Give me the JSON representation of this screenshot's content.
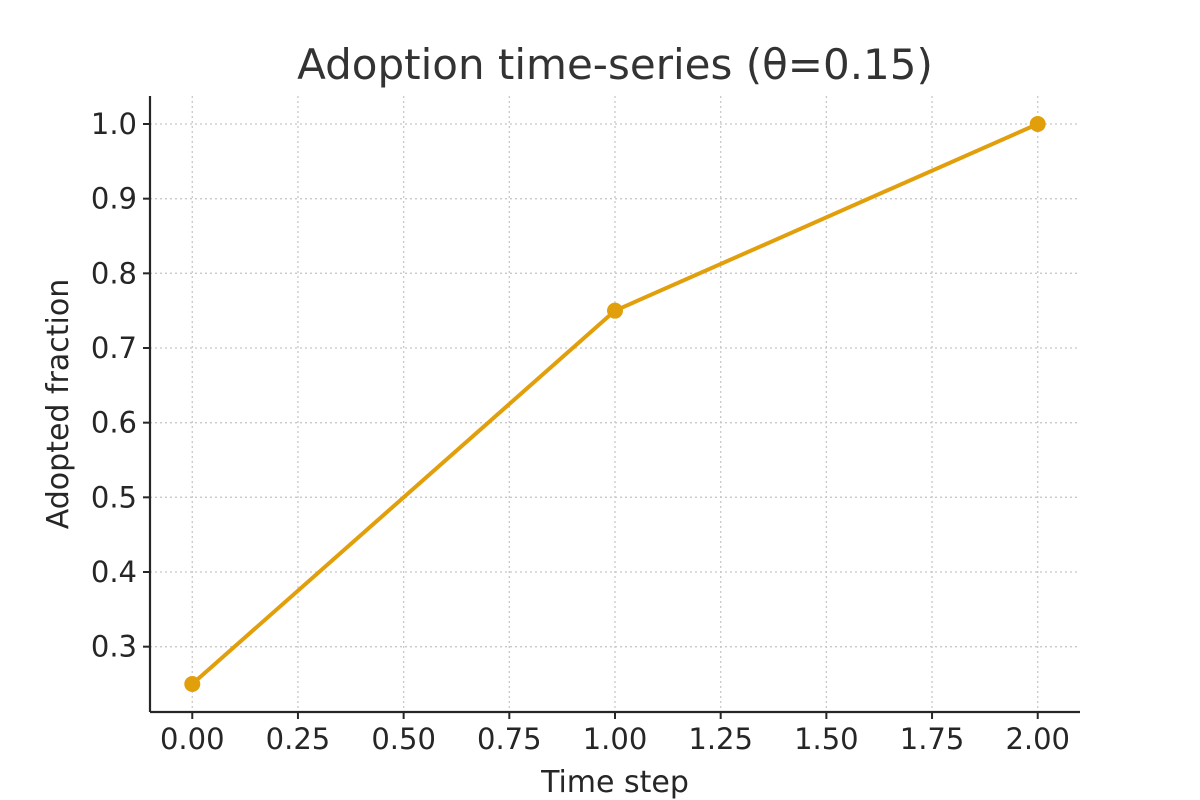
{
  "chart_data": {
    "type": "line",
    "title": "Adoption time-series (θ=0.15)",
    "xlabel": "Time step",
    "ylabel": "Adopted fraction",
    "xlim": [
      -0.1,
      2.1
    ],
    "ylim": [
      0.2125,
      1.0375
    ],
    "x_ticks": [
      0.0,
      0.25,
      0.5,
      0.75,
      1.0,
      1.25,
      1.5,
      1.75,
      2.0
    ],
    "x_tick_labels": [
      "0.00",
      "0.25",
      "0.50",
      "0.75",
      "1.00",
      "1.25",
      "1.50",
      "1.75",
      "2.00"
    ],
    "y_ticks": [
      0.3,
      0.4,
      0.5,
      0.6,
      0.7,
      0.8,
      0.9,
      1.0
    ],
    "y_tick_labels": [
      "0.3",
      "0.4",
      "0.5",
      "0.6",
      "0.7",
      "0.8",
      "0.9",
      "1.0"
    ],
    "grid": true,
    "series": [
      {
        "x": [
          0,
          1,
          2
        ],
        "y": [
          0.25,
          0.75,
          1.0
        ],
        "color": "#E29F0C",
        "marker": "circle"
      }
    ]
  }
}
